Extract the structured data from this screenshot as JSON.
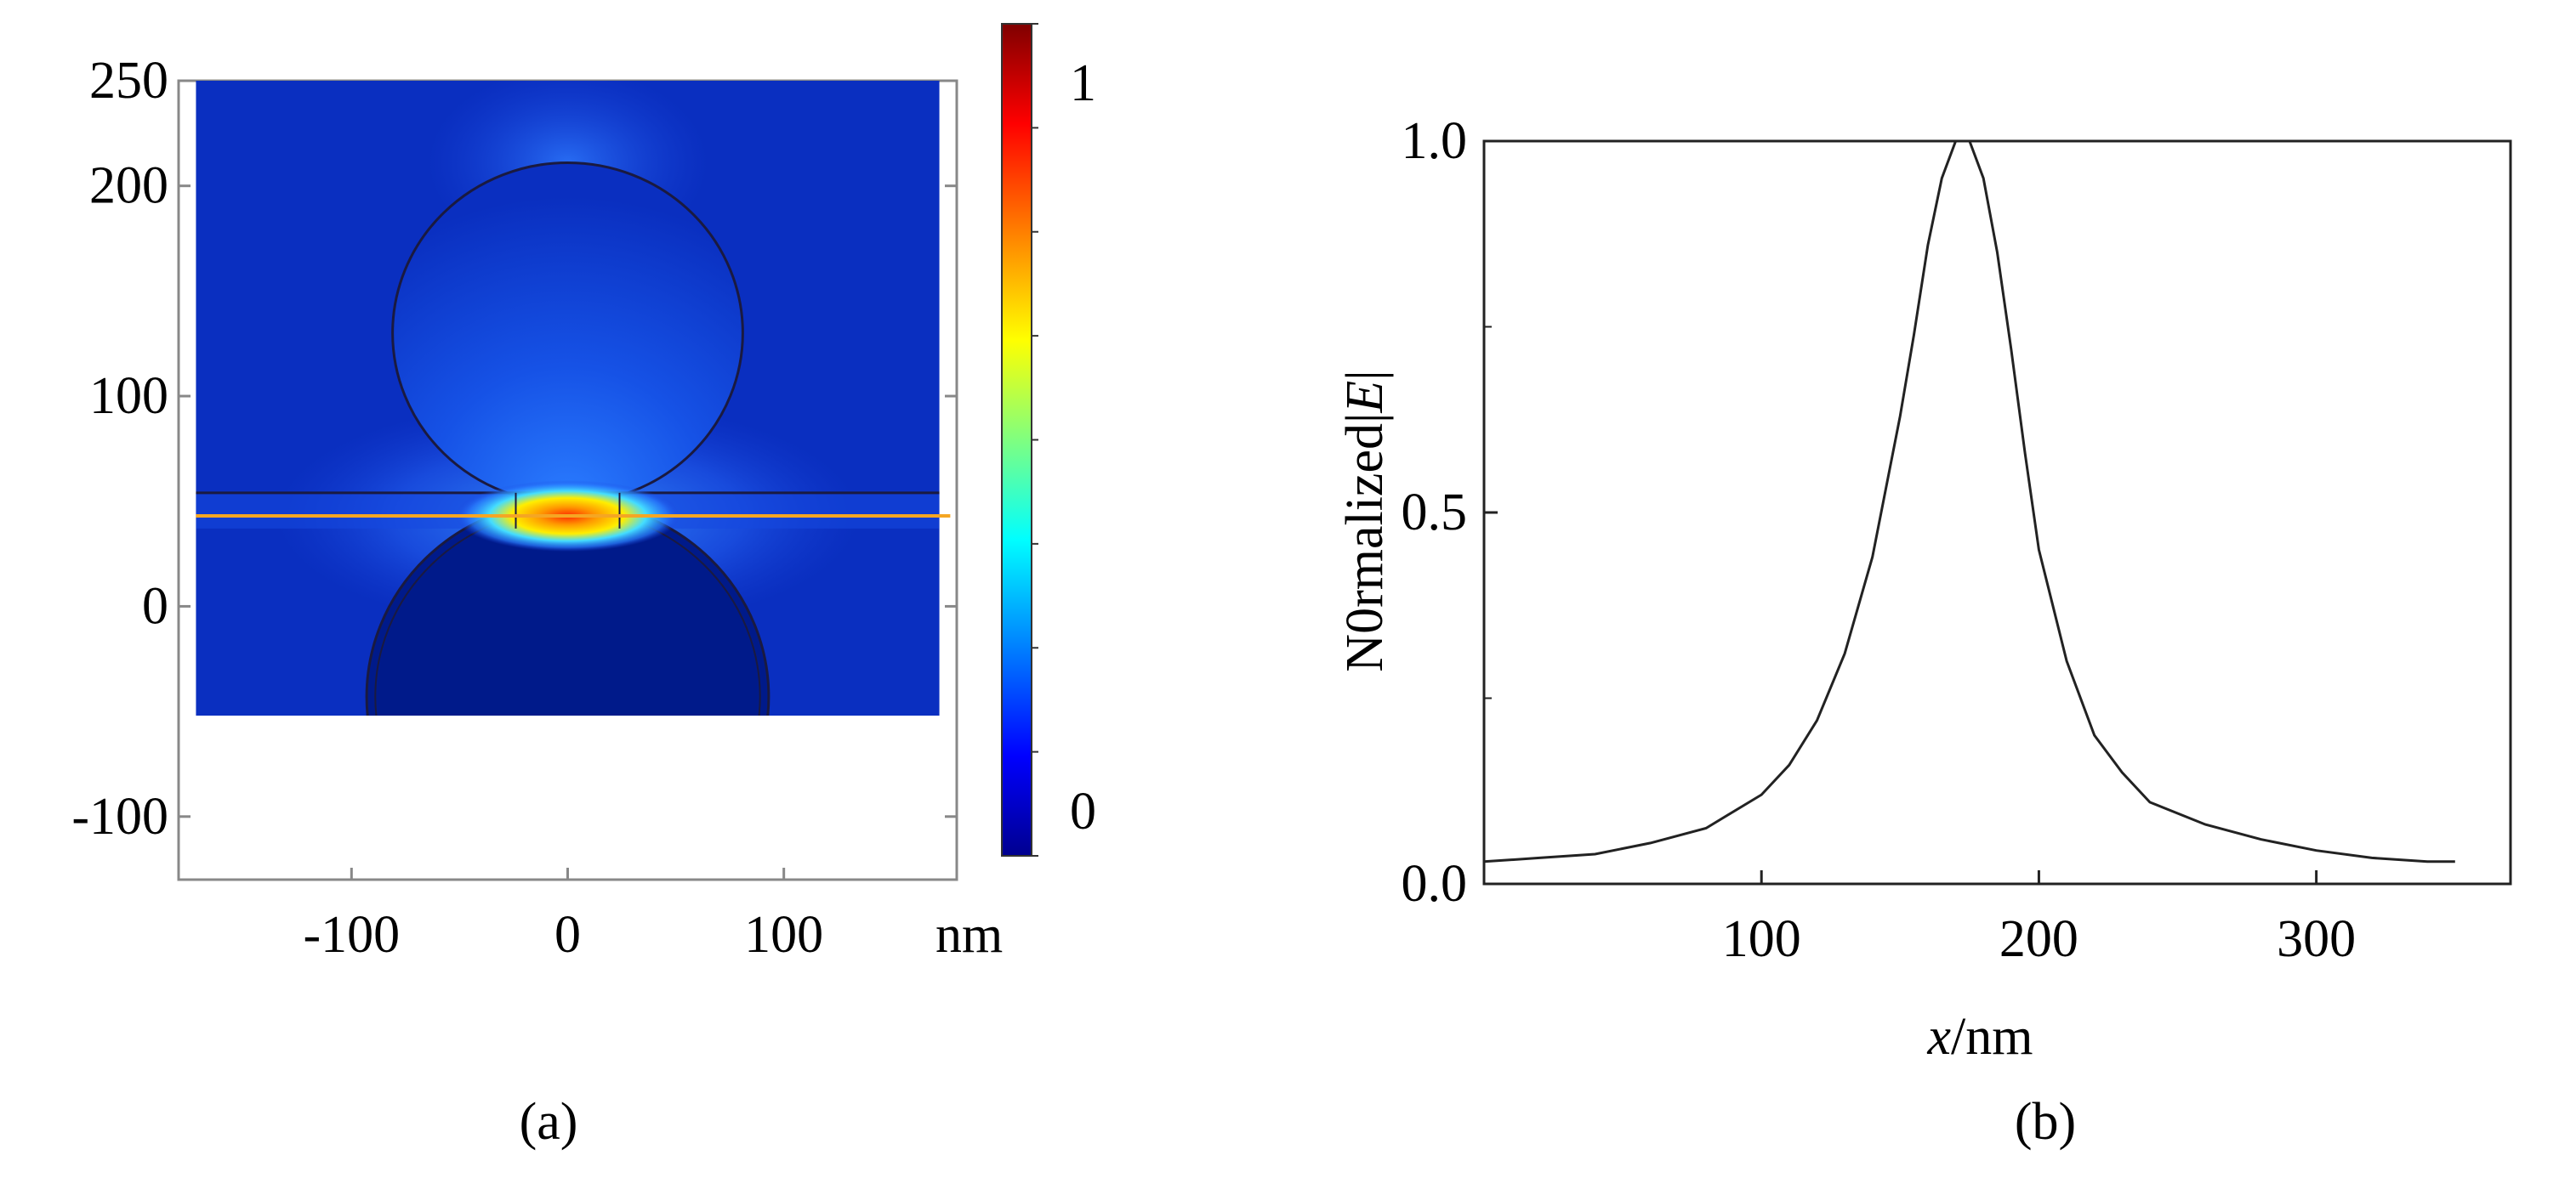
{
  "chart_data": [
    {
      "panel_label": "(a)",
      "type": "heatmap",
      "unit_label": "nm",
      "x_ticks": [
        -100,
        0,
        100
      ],
      "y_ticks": [
        250,
        200,
        100,
        0,
        -100
      ],
      "x_range": [
        -180,
        180
      ],
      "y_range": [
        -130,
        250
      ],
      "field_region": {
        "x": [
          -172,
          172
        ],
        "y": [
          -52,
          250
        ]
      },
      "particles": [
        {
          "cx": 0,
          "cy": 130,
          "r": 81
        },
        {
          "cx": 0,
          "cy": -43,
          "r": 93
        }
      ],
      "line_cut_y": 43,
      "substrate_top_y": 54,
      "colorbar": {
        "min": 0,
        "max": 1,
        "tick_labels": [
          "1",
          "0"
        ]
      },
      "colors": {
        "line_cut": "#f5a623"
      }
    },
    {
      "panel_label": "(b)",
      "type": "line",
      "xlabel_italic": "x",
      "xlabel_unit": "/nm",
      "ylabel_text": "N0rmalized",
      "ylabel_symbol": "E",
      "xlim": [
        0,
        370
      ],
      "ylim": [
        0,
        1.0
      ],
      "x_ticks": [
        100,
        200,
        300
      ],
      "y_ticks": [
        0.0,
        0.5,
        1.0
      ],
      "y_tick_labels": [
        "0.0",
        "0.5",
        "1.0"
      ],
      "series": [
        {
          "x": [
            0,
            20,
            40,
            60,
            80,
            100,
            110,
            120,
            130,
            140,
            150,
            155,
            160,
            165,
            170,
            175,
            180,
            185,
            190,
            195,
            200,
            210,
            220,
            230,
            240,
            260,
            280,
            300,
            320,
            340,
            350
          ],
          "y": [
            0.03,
            0.035,
            0.04,
            0.055,
            0.075,
            0.12,
            0.16,
            0.22,
            0.31,
            0.44,
            0.63,
            0.74,
            0.86,
            0.95,
            1.0,
            1.0,
            0.95,
            0.85,
            0.72,
            0.58,
            0.45,
            0.3,
            0.2,
            0.15,
            0.11,
            0.08,
            0.06,
            0.045,
            0.035,
            0.03,
            0.03
          ]
        }
      ]
    }
  ]
}
